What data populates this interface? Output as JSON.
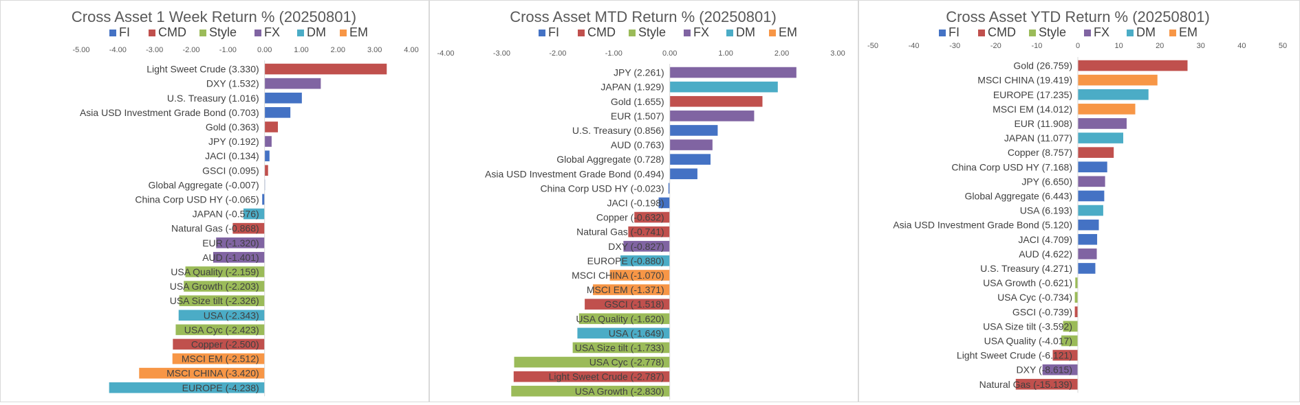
{
  "colors": {
    "FI": "#4472C4",
    "CMD": "#C0504D",
    "Style": "#9BBB59",
    "FX": "#8064A2",
    "DM": "#4BACC6",
    "EM": "#F79646"
  },
  "chart_data": [
    {
      "type": "bar",
      "orientation": "horizontal",
      "title": "Cross Asset 1 Week Return %  (20250801)",
      "legend": [
        "FI",
        "CMD",
        "Style",
        "FX",
        "DM",
        "EM"
      ],
      "legend_position": "top",
      "xlim": [
        -5,
        4
      ],
      "xticks": [
        "-5.00",
        "-4.00",
        "-3.00",
        "-2.00",
        "-1.00",
        "0.00",
        "1.00",
        "2.00",
        "3.00",
        "4.00"
      ],
      "grid": false,
      "bars": [
        {
          "label": "Light Sweet Crude (3.330)",
          "value": 3.33,
          "group": "CMD"
        },
        {
          "label": "DXY (1.532)",
          "value": 1.532,
          "group": "FX"
        },
        {
          "label": "U.S. Treasury (1.016)",
          "value": 1.016,
          "group": "FI"
        },
        {
          "label": "Asia USD Investment Grade Bond (0.703)",
          "value": 0.703,
          "group": "FI"
        },
        {
          "label": "Gold (0.363)",
          "value": 0.363,
          "group": "CMD"
        },
        {
          "label": "JPY (0.192)",
          "value": 0.192,
          "group": "FX"
        },
        {
          "label": "JACI (0.134)",
          "value": 0.134,
          "group": "FI"
        },
        {
          "label": "GSCI  (0.095)",
          "value": 0.095,
          "group": "CMD"
        },
        {
          "label": "Global Aggregate (-0.007)",
          "value": -0.007,
          "group": "FI"
        },
        {
          "label": "China Corp USD HY (-0.065)",
          "value": -0.065,
          "group": "FI"
        },
        {
          "label": "JAPAN (-0.576)",
          "value": -0.576,
          "group": "DM"
        },
        {
          "label": "Natural Gas (-0.868)",
          "value": -0.868,
          "group": "CMD"
        },
        {
          "label": "EUR (-1.320)",
          "value": -1.32,
          "group": "FX"
        },
        {
          "label": "AUD (-1.401)",
          "value": -1.401,
          "group": "FX"
        },
        {
          "label": "USA Quality (-2.159)",
          "value": -2.159,
          "group": "Style"
        },
        {
          "label": "USA Growth (-2.203)",
          "value": -2.203,
          "group": "Style"
        },
        {
          "label": "USA Size tilt (-2.326)",
          "value": -2.326,
          "group": "Style"
        },
        {
          "label": "USA (-2.343)",
          "value": -2.343,
          "group": "DM"
        },
        {
          "label": "USA Cyc (-2.423)",
          "value": -2.423,
          "group": "Style"
        },
        {
          "label": "Copper (-2.500)",
          "value": -2.5,
          "group": "CMD"
        },
        {
          "label": "MSCI EM  (-2.512)",
          "value": -2.512,
          "group": "EM"
        },
        {
          "label": "MSCI CHINA (-3.420)",
          "value": -3.42,
          "group": "EM"
        },
        {
          "label": "EUROPE (-4.238)",
          "value": -4.238,
          "group": "DM"
        }
      ]
    },
    {
      "type": "bar",
      "orientation": "horizontal",
      "title": "Cross Asset MTD Return %  (20250801)",
      "legend": [
        "FI",
        "CMD",
        "Style",
        "FX",
        "DM",
        "EM"
      ],
      "legend_position": "top",
      "xlim": [
        -4,
        3
      ],
      "xticks": [
        "-4.00",
        "-3.00",
        "-2.00",
        "-1.00",
        "0.00",
        "1.00",
        "2.00",
        "3.00"
      ],
      "grid": false,
      "bars": [
        {
          "label": "JPY (2.261)",
          "value": 2.261,
          "group": "FX"
        },
        {
          "label": "JAPAN (1.929)",
          "value": 1.929,
          "group": "DM"
        },
        {
          "label": "Gold (1.655)",
          "value": 1.655,
          "group": "CMD"
        },
        {
          "label": "EUR (1.507)",
          "value": 1.507,
          "group": "FX"
        },
        {
          "label": "U.S. Treasury (0.856)",
          "value": 0.856,
          "group": "FI"
        },
        {
          "label": "AUD (0.763)",
          "value": 0.763,
          "group": "FX"
        },
        {
          "label": "Global Aggregate (0.728)",
          "value": 0.728,
          "group": "FI"
        },
        {
          "label": "Asia USD Investment Grade Bond (0.494)",
          "value": 0.494,
          "group": "FI"
        },
        {
          "label": "China Corp USD HY (-0.023)",
          "value": -0.023,
          "group": "FI"
        },
        {
          "label": "JACI (-0.198)",
          "value": -0.198,
          "group": "FI"
        },
        {
          "label": "Copper (-0.632)",
          "value": -0.632,
          "group": "CMD"
        },
        {
          "label": "Natural Gas (-0.741)",
          "value": -0.741,
          "group": "CMD"
        },
        {
          "label": "DXY (-0.827)",
          "value": -0.827,
          "group": "FX"
        },
        {
          "label": "EUROPE (-0.880)",
          "value": -0.88,
          "group": "DM"
        },
        {
          "label": "MSCI CHINA (-1.070)",
          "value": -1.07,
          "group": "EM"
        },
        {
          "label": "MSCI EM  (-1.371)",
          "value": -1.371,
          "group": "EM"
        },
        {
          "label": "GSCI  (-1.518)",
          "value": -1.518,
          "group": "CMD"
        },
        {
          "label": "USA Quality (-1.620)",
          "value": -1.62,
          "group": "Style"
        },
        {
          "label": "USA (-1.649)",
          "value": -1.649,
          "group": "DM"
        },
        {
          "label": "USA Size tilt (-1.733)",
          "value": -1.733,
          "group": "Style"
        },
        {
          "label": "USA Cyc (-2.778)",
          "value": -2.778,
          "group": "Style"
        },
        {
          "label": "Light Sweet Crude (-2.787)",
          "value": -2.787,
          "group": "CMD"
        },
        {
          "label": "USA Growth (-2.830)",
          "value": -2.83,
          "group": "Style"
        }
      ]
    },
    {
      "type": "bar",
      "orientation": "horizontal",
      "title": "Cross Asset YTD Return %  (20250801)",
      "legend": [
        "FI",
        "CMD",
        "Style",
        "FX",
        "DM",
        "EM"
      ],
      "legend_position": "top",
      "xlim": [
        -50,
        50
      ],
      "xticks": [
        "-50",
        "-40",
        "-30",
        "-20",
        "-10",
        "0",
        "10",
        "20",
        "30",
        "40",
        "50"
      ],
      "grid": false,
      "bars": [
        {
          "label": "Gold (26.759)",
          "value": 26.759,
          "group": "CMD"
        },
        {
          "label": "MSCI CHINA (19.419)",
          "value": 19.419,
          "group": "EM"
        },
        {
          "label": "EUROPE (17.235)",
          "value": 17.235,
          "group": "DM"
        },
        {
          "label": "MSCI EM  (14.012)",
          "value": 14.012,
          "group": "EM"
        },
        {
          "label": "EUR (11.908)",
          "value": 11.908,
          "group": "FX"
        },
        {
          "label": "JAPAN (11.077)",
          "value": 11.077,
          "group": "DM"
        },
        {
          "label": "Copper (8.757)",
          "value": 8.757,
          "group": "CMD"
        },
        {
          "label": "China Corp USD HY (7.168)",
          "value": 7.168,
          "group": "FI"
        },
        {
          "label": "JPY (6.650)",
          "value": 6.65,
          "group": "FX"
        },
        {
          "label": "Global Aggregate (6.443)",
          "value": 6.443,
          "group": "FI"
        },
        {
          "label": "USA (6.193)",
          "value": 6.193,
          "group": "DM"
        },
        {
          "label": "Asia USD Investment Grade Bond (5.120)",
          "value": 5.12,
          "group": "FI"
        },
        {
          "label": "JACI (4.709)",
          "value": 4.709,
          "group": "FI"
        },
        {
          "label": "AUD (4.622)",
          "value": 4.622,
          "group": "FX"
        },
        {
          "label": "U.S. Treasury (4.271)",
          "value": 4.271,
          "group": "FI"
        },
        {
          "label": "USA Growth (-0.621)",
          "value": -0.621,
          "group": "Style"
        },
        {
          "label": "USA Cyc (-0.734)",
          "value": -0.734,
          "group": "Style"
        },
        {
          "label": "GSCI  (-0.739)",
          "value": -0.739,
          "group": "CMD"
        },
        {
          "label": "USA Size tilt (-3.592)",
          "value": -3.592,
          "group": "Style"
        },
        {
          "label": "USA Quality (-4.017)",
          "value": -4.017,
          "group": "Style"
        },
        {
          "label": "Light Sweet Crude (-6.121)",
          "value": -6.121,
          "group": "CMD"
        },
        {
          "label": "DXY (-8.615)",
          "value": -8.615,
          "group": "FX"
        },
        {
          "label": "Natural Gas (-15.139)",
          "value": -15.139,
          "group": "CMD"
        }
      ]
    }
  ]
}
